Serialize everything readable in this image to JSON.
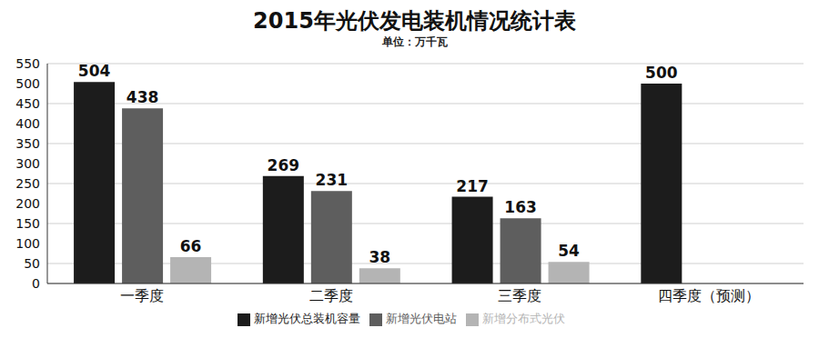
{
  "chart_data": {
    "type": "bar",
    "title": "2015年光伏发电装机情况统计表",
    "subtitle": "单位：万千瓦",
    "categories": [
      "一季度",
      "二季度",
      "三季度",
      "四季度（预测）"
    ],
    "series": [
      {
        "name": "新增光伏总装机容量",
        "color": "#1c1c1c",
        "values": [
          504,
          269,
          217,
          500
        ]
      },
      {
        "name": "新增光伏电站",
        "color": "#5e5e5e",
        "values": [
          438,
          231,
          163,
          null
        ]
      },
      {
        "name": "新增分布式光伏",
        "color": "#b4b4b4",
        "values": [
          66,
          38,
          54,
          null
        ]
      }
    ],
    "ylim": [
      0,
      550
    ],
    "yticks": [
      0,
      50,
      100,
      150,
      200,
      250,
      300,
      350,
      400,
      450,
      500,
      550
    ],
    "grid": true,
    "data_labels": true,
    "legend": "bottom"
  }
}
